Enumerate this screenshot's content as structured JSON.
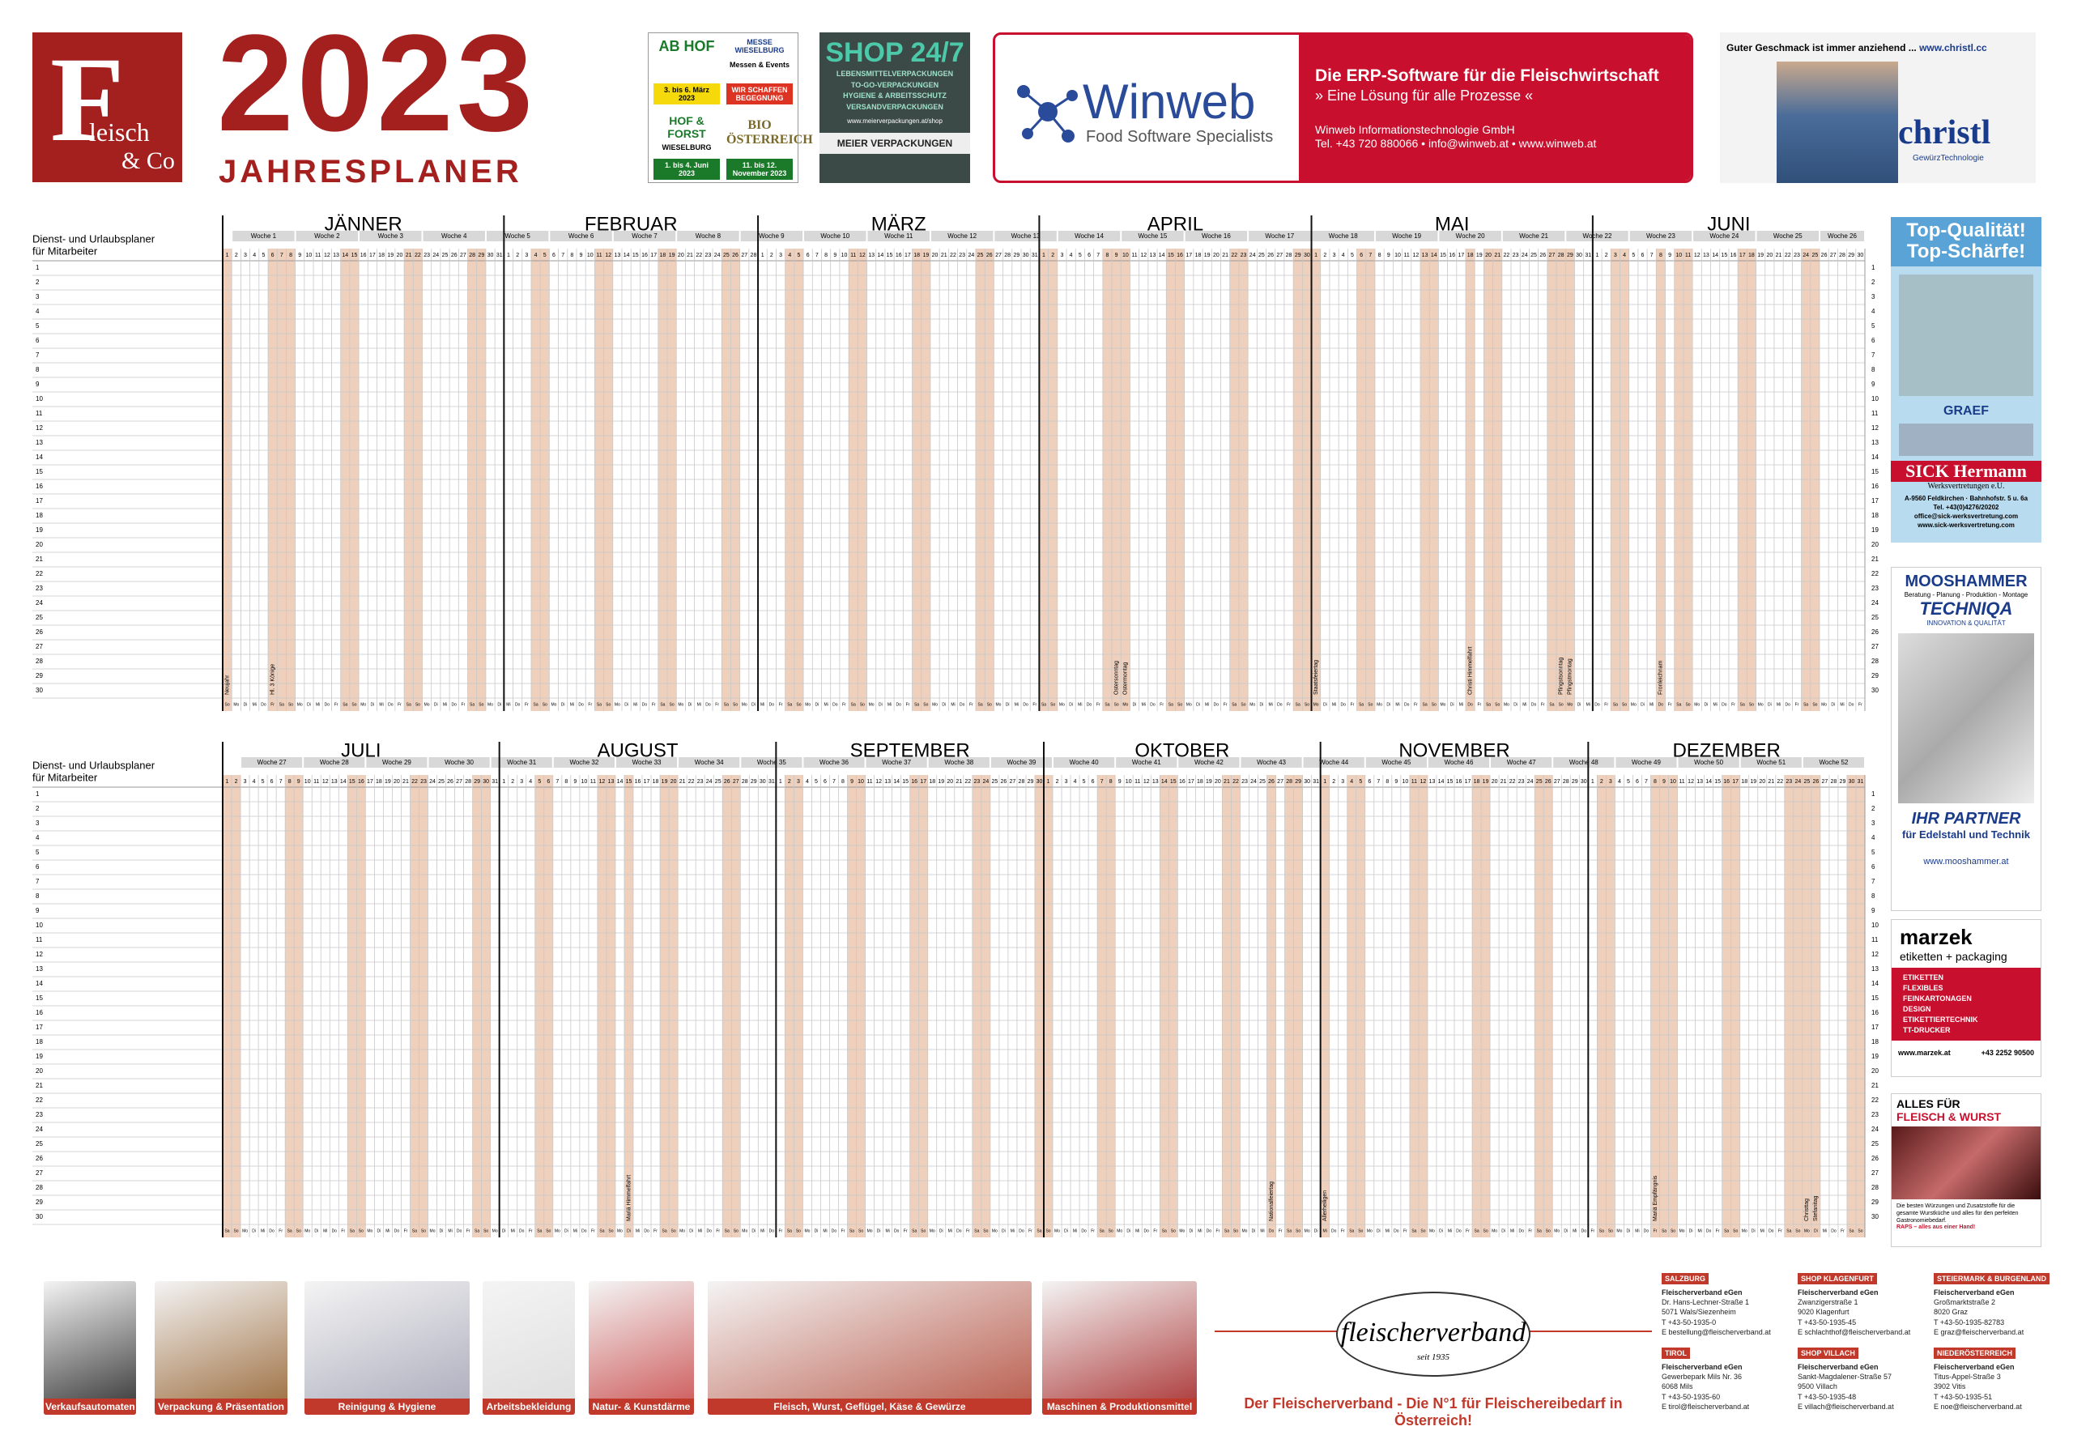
{
  "header": {
    "logo_letter": "F",
    "logo_word": "leisch",
    "logo_sub": "& Co",
    "year": "2023",
    "subtitle": "JAHRESPLANER"
  },
  "ads_top": {
    "messe": {
      "abhof": "AB HOF",
      "messe": "MESSE WIESELBURG",
      "events": "Messen & Events",
      "abhof_date": "3. bis 6. März 2023",
      "claim": "WIR SCHAFFEN BEGEGNUNG",
      "hof": "HOF & FORST",
      "hof_date": "1. bis 4. Juni 2023",
      "bio": "BIO ÖSTERREICH",
      "bio_date": "11. bis 12. November 2023",
      "place": "WIESELBURG"
    },
    "shop": {
      "title": "SHOP 24/7",
      "items": [
        "LEBENSMITTELVERPACKUNGEN",
        "TO-GO-VERPACKUNGEN",
        "HYGIENE & ARBEITSSCHUTZ",
        "VERSANDVERPACKUNGEN"
      ],
      "url": "www.meierverpackungen.at/shop",
      "brand": "MEIER VERPACKUNGEN"
    },
    "winweb": {
      "name": "Winweb",
      "tagline": "Food Software Specialists",
      "headline": "Die ERP-Software für die Fleischwirtschaft",
      "claim": "» Eine Lösung für alle Prozesse «",
      "company": "Winweb Informationstechnologie GmbH",
      "contact": "Tel. +43 720 880066 • info@winweb.at • www.winweb.at"
    },
    "christl": {
      "slogan": "Guter Geschmack ist immer anziehend ...",
      "url": "www.christl.cc",
      "brand": "christl",
      "sub": "GewürzTechnologie"
    }
  },
  "ads_right": {
    "sick": {
      "lines": [
        "Top-Qualität!",
        "Top-Schärfe!"
      ],
      "graef": "GRAEF",
      "brand": "SICK Hermann",
      "sub": "Werksvertretungen e.U.",
      "contact": [
        "A-9560 Feldkirchen · Bahnhofstr. 5 u. 6a",
        "Tel. +43(0)4276/20202",
        "office@sick-werksvertretung.com",
        "www.sick-werksvertretung.com"
      ]
    },
    "mooshammer": {
      "brand": "MOOSHAMMER",
      "services": "Beratung - Planung - Produktion - Montage",
      "techniqa": "TECHNIQA",
      "quality": "INNOVATION & QUALITÄT",
      "partner": "IHR PARTNER",
      "partner_sub": "für Edelstahl und Technik",
      "url": "www.mooshammer.at"
    },
    "marzek": {
      "brand": "marzek",
      "sub": "etiketten + packaging",
      "items": [
        "ETIKETTEN",
        "FLEXIBLES",
        "FEINKARTONAGEN",
        "DESIGN",
        "ETIKETTIERTECHNIK",
        "TT-DRUCKER"
      ],
      "url": "www.marzek.at",
      "phone": "+43 2252 90500"
    },
    "raps": {
      "line1": "ALLES FÜR",
      "line2": "FLEISCH & WURST",
      "text": "Die besten Würzungen und Zusatzstoffe für die gesamte Wurstküche und alles für den perfekten Gastronomiebedarf.",
      "claim": "RAPS – alles aus einer Hand!"
    }
  },
  "planner": {
    "row_label": [
      "Dienst- und Urlaubsplaner",
      "für Mitarbeiter"
    ],
    "rows": [
      1,
      2,
      3,
      4,
      5,
      6,
      7,
      8,
      9,
      10,
      11,
      12,
      13,
      14,
      15,
      16,
      17,
      18,
      19,
      20,
      21,
      22,
      23,
      24,
      25,
      26,
      27,
      28,
      29,
      30
    ],
    "weekdays": [
      "Mo",
      "Di",
      "Mi",
      "Do",
      "Fr",
      "Sa",
      "So"
    ],
    "halves": [
      {
        "weeks": [
          "Woche 1",
          "Woche 2",
          "Woche 3",
          "Woche 4",
          "Woche 5",
          "Woche 6",
          "Woche 7",
          "Woche 8",
          "Woche 9",
          "Woche 10",
          "Woche 11",
          "Woche 12",
          "Woche 13",
          "Woche 14",
          "Woche 15",
          "Woche 16",
          "Woche 17",
          "Woche 18",
          "Woche 19",
          "Woche 20",
          "Woche 21",
          "Woche 22",
          "Woche 23",
          "Woche 24",
          "Woche 25",
          "Woche 26"
        ],
        "months": [
          {
            "name": "JÄNNER",
            "first_weekday": "So",
            "days": [
              1,
              2,
              3,
              4,
              5,
              6,
              7,
              8,
              9,
              10,
              11,
              12,
              13,
              14,
              15,
              16,
              17,
              18,
              19,
              20,
              21,
              22,
              23,
              24,
              25,
              26,
              27,
              28,
              29,
              30,
              31
            ],
            "holidays": [
              {
                "day": 1,
                "label": "Neujahr"
              },
              {
                "day": 6,
                "label": "Hl. 3 Könige"
              }
            ]
          },
          {
            "name": "FEBRUAR",
            "first_weekday": "Mi",
            "days": [
              1,
              2,
              3,
              4,
              5,
              6,
              7,
              8,
              9,
              10,
              11,
              12,
              13,
              14,
              15,
              16,
              17,
              18,
              19,
              20,
              21,
              22,
              23,
              24,
              25,
              26,
              27,
              28
            ],
            "holidays": []
          },
          {
            "name": "MÄRZ",
            "first_weekday": "Mi",
            "days": [
              1,
              2,
              3,
              4,
              5,
              6,
              7,
              8,
              9,
              10,
              11,
              12,
              13,
              14,
              15,
              16,
              17,
              18,
              19,
              20,
              21,
              22,
              23,
              24,
              25,
              26,
              27,
              28,
              29,
              30,
              31
            ],
            "holidays": []
          },
          {
            "name": "APRIL",
            "first_weekday": "Sa",
            "days": [
              1,
              2,
              3,
              4,
              5,
              6,
              7,
              8,
              9,
              10,
              11,
              12,
              13,
              14,
              15,
              16,
              17,
              18,
              19,
              20,
              21,
              22,
              23,
              24,
              25,
              26,
              27,
              28,
              29,
              30
            ],
            "holidays": [
              {
                "day": 9,
                "label": "Ostersonntag"
              },
              {
                "day": 10,
                "label": "Ostermontag"
              }
            ]
          },
          {
            "name": "MAI",
            "first_weekday": "Mo",
            "days": [
              1,
              2,
              3,
              4,
              5,
              6,
              7,
              8,
              9,
              10,
              11,
              12,
              13,
              14,
              15,
              16,
              17,
              18,
              19,
              20,
              21,
              22,
              23,
              24,
              25,
              26,
              27,
              28,
              29,
              30,
              31
            ],
            "holidays": [
              {
                "day": 1,
                "label": "Staatsfeiertag"
              },
              {
                "day": 18,
                "label": "Christi Himmelfahrt"
              },
              {
                "day": 28,
                "label": "Pfingstsonntag"
              },
              {
                "day": 29,
                "label": "Pfingstmontag"
              }
            ]
          },
          {
            "name": "JUNI",
            "first_weekday": "Do",
            "days": [
              1,
              2,
              3,
              4,
              5,
              6,
              7,
              8,
              9,
              10,
              11,
              12,
              13,
              14,
              15,
              16,
              17,
              18,
              19,
              20,
              21,
              22,
              23,
              24,
              25,
              26,
              27,
              28,
              29,
              30
            ],
            "holidays": [
              {
                "day": 8,
                "label": "Fronleichnam"
              }
            ]
          }
        ]
      },
      {
        "weeks": [
          "Woche 27",
          "Woche 28",
          "Woche 29",
          "Woche 30",
          "Woche 31",
          "Woche 32",
          "Woche 33",
          "Woche 34",
          "Woche 35",
          "Woche 36",
          "Woche 37",
          "Woche 38",
          "Woche 39",
          "Woche 40",
          "Woche 41",
          "Woche 42",
          "Woche 43",
          "Woche 44",
          "Woche 45",
          "Woche 46",
          "Woche 47",
          "Woche 48",
          "Woche 49",
          "Woche 50",
          "Woche 51",
          "Woche 52"
        ],
        "months": [
          {
            "name": "JULI",
            "first_weekday": "Sa",
            "days": [
              1,
              2,
              3,
              4,
              5,
              6,
              7,
              8,
              9,
              10,
              11,
              12,
              13,
              14,
              15,
              16,
              17,
              18,
              19,
              20,
              21,
              22,
              23,
              24,
              25,
              26,
              27,
              28,
              29,
              30,
              31
            ],
            "holidays": []
          },
          {
            "name": "AUGUST",
            "first_weekday": "Di",
            "days": [
              1,
              2,
              3,
              4,
              5,
              6,
              7,
              8,
              9,
              10,
              11,
              12,
              13,
              14,
              15,
              16,
              17,
              18,
              19,
              20,
              21,
              22,
              23,
              24,
              25,
              26,
              27,
              28,
              29,
              30,
              31
            ],
            "holidays": [
              {
                "day": 15,
                "label": "Mariä Himmelfahrt"
              }
            ]
          },
          {
            "name": "SEPTEMBER",
            "first_weekday": "Fr",
            "days": [
              1,
              2,
              3,
              4,
              5,
              6,
              7,
              8,
              9,
              10,
              11,
              12,
              13,
              14,
              15,
              16,
              17,
              18,
              19,
              20,
              21,
              22,
              23,
              24,
              25,
              26,
              27,
              28,
              29,
              30
            ],
            "holidays": []
          },
          {
            "name": "OKTOBER",
            "first_weekday": "So",
            "days": [
              1,
              2,
              3,
              4,
              5,
              6,
              7,
              8,
              9,
              10,
              11,
              12,
              13,
              14,
              15,
              16,
              17,
              18,
              19,
              20,
              21,
              22,
              23,
              24,
              25,
              26,
              27,
              28,
              29,
              30,
              31
            ],
            "holidays": [
              {
                "day": 26,
                "label": "Nationalfeiertag"
              }
            ]
          },
          {
            "name": "NOVEMBER",
            "first_weekday": "Mi",
            "days": [
              1,
              2,
              3,
              4,
              5,
              6,
              7,
              8,
              9,
              10,
              11,
              12,
              13,
              14,
              15,
              16,
              17,
              18,
              19,
              20,
              21,
              22,
              23,
              24,
              25,
              26,
              27,
              28,
              29,
              30
            ],
            "holidays": [
              {
                "day": 1,
                "label": "Allerheiligen"
              }
            ]
          },
          {
            "name": "DEZEMBER",
            "first_weekday": "Fr",
            "days": [
              1,
              2,
              3,
              4,
              5,
              6,
              7,
              8,
              9,
              10,
              11,
              12,
              13,
              14,
              15,
              16,
              17,
              18,
              19,
              20,
              21,
              22,
              23,
              24,
              25,
              26,
              27,
              28,
              29,
              30,
              31
            ],
            "holidays": [
              {
                "day": 8,
                "label": "Mariä Empfängnis"
              },
              {
                "day": 25,
                "label": "Christtag"
              },
              {
                "day": 26,
                "label": "Stefanitag"
              }
            ]
          }
        ]
      }
    ]
  },
  "footer": {
    "products": [
      "Verkaufsautomaten",
      "Verpackung & Präsentation",
      "Reinigung & Hygiene",
      "Arbeitsbekleidung",
      "Natur- & Kunstdärme",
      "Fleisch, Wurst, Geflügel, Käse & Gewürze",
      "Maschinen & Produktionsmittel"
    ],
    "brand": "fleischerverband",
    "since": "seit 1935",
    "slogan": "Der Fleischerverband - Die N°1 für Fleischereibedarf in Österreich!",
    "contacts": [
      {
        "region": "SALZBURG",
        "lines": [
          "Fleischerverband eGen",
          "Dr. Hans-Lechner-Straße 1",
          "5071 Wals/Siezenheim",
          "T +43-50-1935-0",
          "E bestellung@fleischerverband.at"
        ]
      },
      {
        "region": "SHOP KLAGENFURT",
        "lines": [
          "Fleischerverband eGen",
          "Zwanzigerstraße 1",
          "9020 Klagenfurt",
          "T +43-50-1935-45",
          "E schlachthof@fleischerverband.at"
        ]
      },
      {
        "region": "STEIERMARK & BURGENLAND",
        "lines": [
          "Fleischerverband eGen",
          "Großmarktstraße 2",
          "8020 Graz",
          "T +43-50-1935-82783",
          "E graz@fleischerverband.at"
        ]
      },
      {
        "region": "TIROL",
        "lines": [
          "Fleischerverband eGen",
          "Gewerbepark Mils Nr. 36",
          "6068 Mils",
          "T +43-50-1935-60",
          "E tirol@fleischerverband.at"
        ]
      },
      {
        "region": "SHOP VILLACH",
        "lines": [
          "Fleischerverband eGen",
          "Sankt-Magdalener-Straße 57",
          "9500 Villach",
          "T +43-50-1935-48",
          "E villach@fleischerverband.at"
        ]
      },
      {
        "region": "NIEDERÖSTERREICH",
        "lines": [
          "Fleischerverband eGen",
          "Titus-Appel-Straße 3",
          "3902 Vitis",
          "T +43-50-1935-51",
          "E noe@fleischerverband.at"
        ]
      }
    ]
  }
}
